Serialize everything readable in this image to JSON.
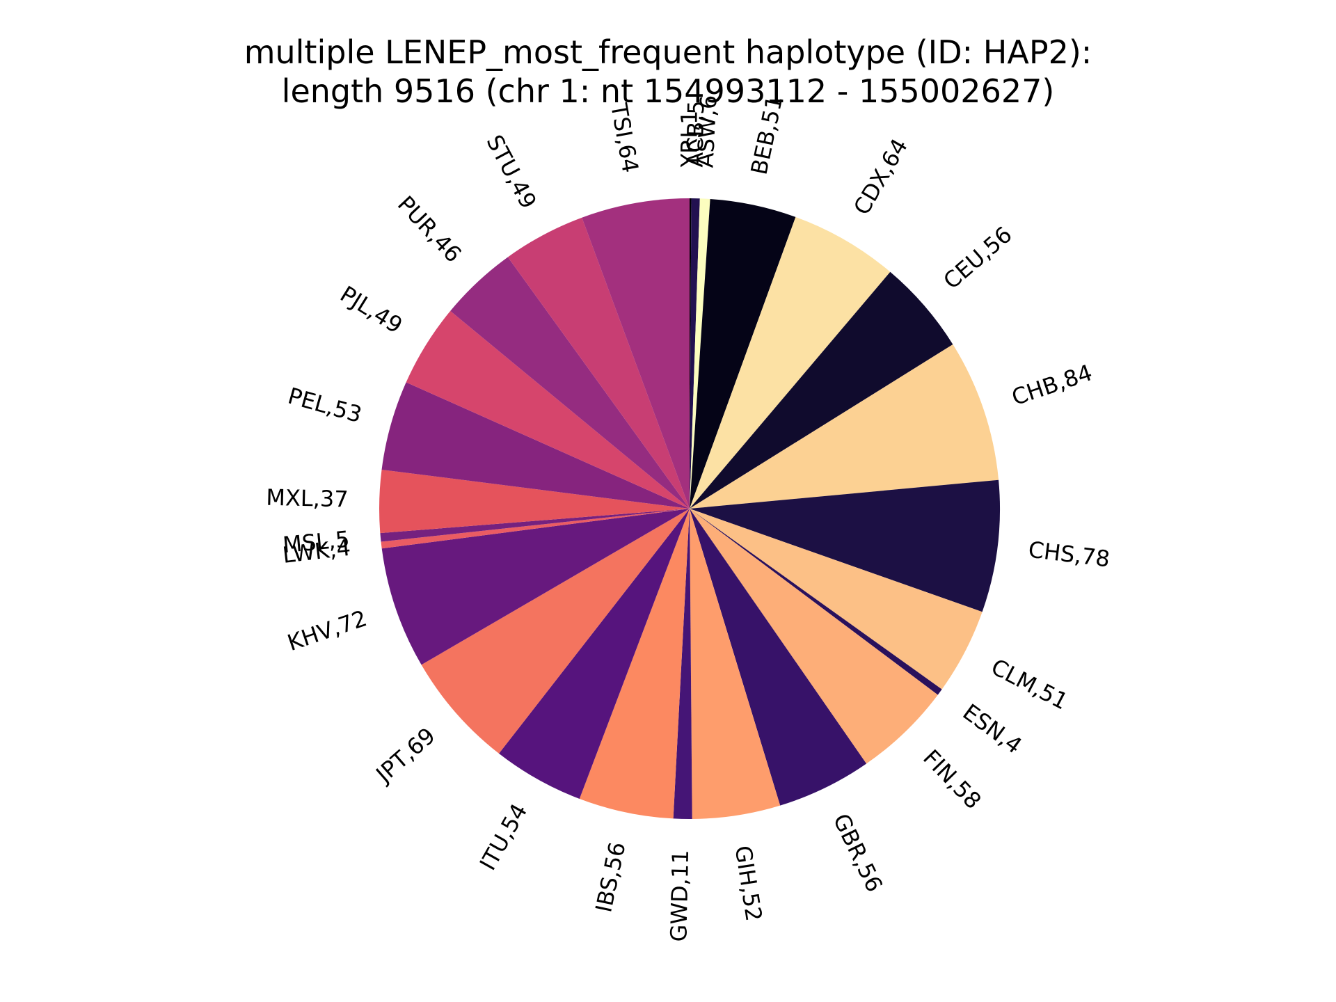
{
  "chart_data": {
    "type": "pie",
    "title": "multiple LENEP_most_frequent haplotype (ID: HAP2):",
    "subtitle": "length 9516 (chr 1: nt 154993112 - 155002627)",
    "start_angle_deg": 90,
    "direction": "clockwise",
    "slices": [
      {
        "label": "YRI",
        "value": 1,
        "text": "YRI,1",
        "color": "#000004"
      },
      {
        "label": "ACB",
        "value": 5,
        "text": "ACB,5",
        "color": "#221150"
      },
      {
        "label": "ASW",
        "value": 6,
        "text": "ASW,6",
        "color": "#fcfdbf"
      },
      {
        "label": "BEB",
        "value": 51,
        "text": "BEB,51",
        "color": "#050417"
      },
      {
        "label": "CDX",
        "value": 64,
        "text": "CDX,64",
        "color": "#fce1a4"
      },
      {
        "label": "CEU",
        "value": 56,
        "text": "CEU,56",
        "color": "#100b2d"
      },
      {
        "label": "CHB",
        "value": 84,
        "text": "CHB,84",
        "color": "#fcd193"
      },
      {
        "label": "CHS",
        "value": 78,
        "text": "CHS,78",
        "color": "#1c1044"
      },
      {
        "label": "CLM",
        "value": 51,
        "text": "CLM,51",
        "color": "#fcc086"
      },
      {
        "label": "ESN",
        "value": 4,
        "text": "ESN,4",
        "color": "#2a115c"
      },
      {
        "label": "FIN",
        "value": 58,
        "text": "FIN,58",
        "color": "#fdae78"
      },
      {
        "label": "GBR",
        "value": 56,
        "text": "GBR,56",
        "color": "#371269"
      },
      {
        "label": "GIH",
        "value": 52,
        "text": "GIH,52",
        "color": "#fe9d6c"
      },
      {
        "label": "GWD",
        "value": 11,
        "text": "GWD,11",
        "color": "#451576"
      },
      {
        "label": "IBS",
        "value": 56,
        "text": "IBS,56",
        "color": "#fc8961"
      },
      {
        "label": "ITU",
        "value": 54,
        "text": "ITU,54",
        "color": "#56147d"
      },
      {
        "label": "JPT",
        "value": 69,
        "text": "JPT,69",
        "color": "#f4745f"
      },
      {
        "label": "KHV",
        "value": 72,
        "text": "KHV,72",
        "color": "#67197e"
      },
      {
        "label": "LWK",
        "value": 4,
        "text": "LWK,4",
        "color": "#ea5c63"
      },
      {
        "label": "MSL",
        "value": 5,
        "text": "MSL,5",
        "color": "#75217f"
      },
      {
        "label": "MXL",
        "value": 37,
        "text": "MXL,37",
        "color": "#e5535c"
      },
      {
        "label": "PEL",
        "value": 53,
        "text": "PEL,53",
        "color": "#86247e"
      },
      {
        "label": "PJL",
        "value": 49,
        "text": "PJL,49",
        "color": "#d6456c"
      },
      {
        "label": "PUR",
        "value": 46,
        "text": "PUR,46",
        "color": "#952c80"
      },
      {
        "label": "STU",
        "value": 49,
        "text": "STU,49",
        "color": "#c83e73"
      },
      {
        "label": "TSI",
        "value": 64,
        "text": "TSI,64",
        "color": "#a3307e"
      }
    ]
  }
}
